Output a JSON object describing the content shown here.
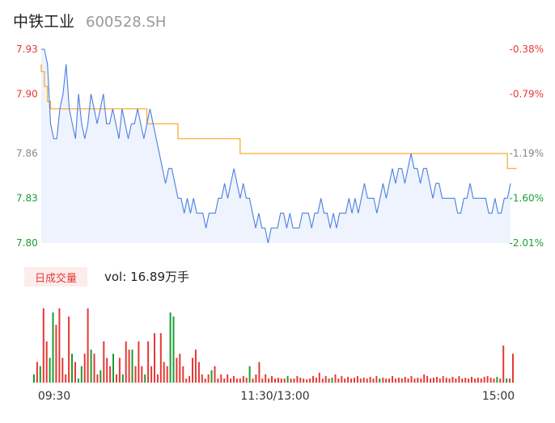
{
  "header": {
    "name": "中铁工业",
    "code": "600528.SH"
  },
  "volume_panel": {
    "tab_label": "日成交量",
    "vol_prefix": "vol:",
    "vol_value": "16.89万手"
  },
  "colors": {
    "price_line": "#4a7fe0",
    "avg_line": "#f5a623",
    "area_fill": "#eef3fd",
    "up": "#e53935",
    "down": "#1a9d33",
    "axis_text": "#888888"
  },
  "chart_data": [
    {
      "type": "line",
      "title": "",
      "y_range": [
        7.8,
        7.93
      ],
      "y_ticks_left": [
        "7.93",
        "7.90",
        "7.86",
        "7.83",
        "7.80"
      ],
      "y_ticks_right": [
        "-0.38%",
        "-0.79%",
        "-1.19%",
        "-1.60%",
        "-2.01%"
      ],
      "x_ticks": [
        "09:30",
        "11:30/13:00",
        "15:00"
      ],
      "grid": false,
      "series": [
        {
          "role": "price",
          "values": [
            7.93,
            7.93,
            7.92,
            7.88,
            7.87,
            7.87,
            7.89,
            7.9,
            7.92,
            7.89,
            7.88,
            7.87,
            7.9,
            7.88,
            7.87,
            7.88,
            7.9,
            7.89,
            7.88,
            7.89,
            7.9,
            7.88,
            7.88,
            7.89,
            7.88,
            7.87,
            7.89,
            7.88,
            7.87,
            7.88,
            7.88,
            7.89,
            7.88,
            7.87,
            7.88,
            7.89,
            7.88,
            7.87,
            7.86,
            7.85,
            7.84,
            7.85,
            7.85,
            7.84,
            7.83,
            7.83,
            7.82,
            7.83,
            7.82,
            7.83,
            7.82,
            7.82,
            7.82,
            7.81,
            7.82,
            7.82,
            7.82,
            7.83,
            7.83,
            7.84,
            7.83,
            7.84,
            7.85,
            7.84,
            7.83,
            7.84,
            7.83,
            7.83,
            7.82,
            7.81,
            7.82,
            7.81,
            7.81,
            7.8,
            7.81,
            7.81,
            7.81,
            7.82,
            7.82,
            7.81,
            7.82,
            7.81,
            7.81,
            7.81,
            7.82,
            7.82,
            7.82,
            7.81,
            7.82,
            7.82,
            7.83,
            7.82,
            7.82,
            7.81,
            7.82,
            7.81,
            7.82,
            7.82,
            7.82,
            7.83,
            7.82,
            7.83,
            7.82,
            7.83,
            7.84,
            7.83,
            7.83,
            7.83,
            7.82,
            7.83,
            7.84,
            7.83,
            7.84,
            7.85,
            7.84,
            7.85,
            7.85,
            7.84,
            7.85,
            7.86,
            7.85,
            7.85,
            7.84,
            7.85,
            7.85,
            7.84,
            7.83,
            7.84,
            7.84,
            7.83,
            7.83,
            7.83,
            7.83,
            7.83,
            7.82,
            7.82,
            7.83,
            7.83,
            7.84,
            7.83,
            7.83,
            7.83,
            7.83,
            7.83,
            7.82,
            7.82,
            7.83,
            7.82,
            7.82,
            7.83,
            7.83,
            7.84
          ]
        },
        {
          "role": "average",
          "values": [
            7.92,
            7.915,
            7.905,
            7.895,
            7.89,
            7.89,
            7.89,
            7.89,
            7.89,
            7.89,
            7.89,
            7.89,
            7.89,
            7.89,
            7.89,
            7.89,
            7.89,
            7.89,
            7.89,
            7.89,
            7.89,
            7.89,
            7.89,
            7.89,
            7.89,
            7.89,
            7.89,
            7.89,
            7.89,
            7.89,
            7.89,
            7.89,
            7.89,
            7.89,
            7.89,
            7.88,
            7.88,
            7.88,
            7.88,
            7.88,
            7.88,
            7.88,
            7.88,
            7.88,
            7.88,
            7.87,
            7.87,
            7.87,
            7.87,
            7.87,
            7.87,
            7.87,
            7.87,
            7.87,
            7.87,
            7.87,
            7.87,
            7.87,
            7.87,
            7.87,
            7.87,
            7.87,
            7.87,
            7.87,
            7.87,
            7.86,
            7.86,
            7.86,
            7.86,
            7.86,
            7.86,
            7.86,
            7.86,
            7.86,
            7.86,
            7.86,
            7.86,
            7.86,
            7.86,
            7.86,
            7.86,
            7.86,
            7.86,
            7.86,
            7.86,
            7.86,
            7.86,
            7.86,
            7.86,
            7.86,
            7.86,
            7.86,
            7.86,
            7.86,
            7.86,
            7.86,
            7.86,
            7.86,
            7.86,
            7.86,
            7.86,
            7.86,
            7.86,
            7.86,
            7.86,
            7.86,
            7.86,
            7.86,
            7.86,
            7.86,
            7.86,
            7.86,
            7.86,
            7.86,
            7.86,
            7.86,
            7.86,
            7.86,
            7.86,
            7.86,
            7.86,
            7.86,
            7.86,
            7.86,
            7.86,
            7.86,
            7.86,
            7.86,
            7.86,
            7.86,
            7.86,
            7.86,
            7.86,
            7.86,
            7.86,
            7.86,
            7.86,
            7.86,
            7.86,
            7.86,
            7.86,
            7.86,
            7.86,
            7.86,
            7.86,
            7.86,
            7.86,
            7.86,
            7.86,
            7.86,
            7.86,
            7.85,
            7.85,
            7.85
          ]
        }
      ]
    },
    {
      "type": "bar",
      "title": "",
      "y_unit": "relative",
      "series": [
        {
          "role": "volume",
          "values": [
            0.1,
            0.25,
            0.2,
            0.9,
            0.5,
            0.3,
            0.85,
            0.7,
            0.9,
            0.3,
            0.1,
            0.8,
            0.35,
            0.25,
            0.05,
            0.2,
            0.35,
            0.9,
            0.4,
            0.35,
            0.1,
            0.15,
            0.5,
            0.3,
            0.2,
            0.35,
            0.1,
            0.3,
            0.1,
            0.5,
            0.4,
            0.4,
            0.2,
            0.5,
            0.2,
            0.1,
            0.5,
            0.2,
            0.6,
            0.1,
            0.6,
            0.25,
            0.2,
            0.85,
            0.8,
            0.3,
            0.35,
            0.2,
            0.05,
            0.08,
            0.3,
            0.4,
            0.25,
            0.1,
            0.05,
            0.1,
            0.15,
            0.2,
            0.05,
            0.1,
            0.05,
            0.1,
            0.05,
            0.08,
            0.05,
            0.05,
            0.08,
            0.06,
            0.2,
            0.05,
            0.1,
            0.25,
            0.05,
            0.1,
            0.05,
            0.08,
            0.05,
            0.06,
            0.05,
            0.05,
            0.08,
            0.05,
            0.05,
            0.08,
            0.06,
            0.05,
            0.04,
            0.05,
            0.08,
            0.06,
            0.12,
            0.05,
            0.08,
            0.05,
            0.06,
            0.1,
            0.05,
            0.08,
            0.05,
            0.07,
            0.05,
            0.06,
            0.08,
            0.05,
            0.06,
            0.05,
            0.07,
            0.05,
            0.08,
            0.05,
            0.06,
            0.05,
            0.05,
            0.08,
            0.05,
            0.06,
            0.05,
            0.07,
            0.05,
            0.08,
            0.05,
            0.06,
            0.05,
            0.1,
            0.08,
            0.05,
            0.06,
            0.07,
            0.05,
            0.08,
            0.06,
            0.05,
            0.07,
            0.05,
            0.08,
            0.05,
            0.06,
            0.05,
            0.07,
            0.05,
            0.06,
            0.05,
            0.07,
            0.08,
            0.06,
            0.05,
            0.07,
            0.05,
            0.45,
            0.05,
            0.05,
            0.35
          ],
          "direction": [
            "d",
            "u",
            "d",
            "u",
            "u",
            "d",
            "d",
            "u",
            "u",
            "u",
            "u",
            "u",
            "d",
            "u",
            "d",
            "d",
            "u",
            "u",
            "d",
            "u",
            "u",
            "d",
            "u",
            "u",
            "u",
            "d",
            "u",
            "u",
            "d",
            "u",
            "u",
            "d",
            "u",
            "u",
            "u",
            "d",
            "u",
            "u",
            "u",
            "u",
            "u",
            "u",
            "u",
            "d",
            "d",
            "u",
            "u",
            "u",
            "u",
            "u",
            "u",
            "u",
            "u",
            "u",
            "u",
            "u",
            "d",
            "u",
            "u",
            "u",
            "u",
            "u",
            "u",
            "u",
            "u",
            "u",
            "u",
            "u",
            "d",
            "u",
            "u",
            "u",
            "u",
            "u",
            "u",
            "u",
            "u",
            "u",
            "u",
            "u",
            "d",
            "u",
            "u",
            "u",
            "u",
            "u",
            "u",
            "u",
            "u",
            "u",
            "u",
            "u",
            "u",
            "u",
            "d",
            "u",
            "u",
            "u",
            "u",
            "u",
            "u",
            "u",
            "u",
            "u",
            "u",
            "u",
            "u",
            "u",
            "u",
            "d",
            "u",
            "u",
            "u",
            "u",
            "u",
            "u",
            "u",
            "u",
            "u",
            "u",
            "u",
            "u",
            "u",
            "u",
            "u",
            "u",
            "u",
            "u",
            "u",
            "u",
            "u",
            "u",
            "u",
            "u",
            "u",
            "u",
            "u",
            "u",
            "u",
            "u",
            "u",
            "u",
            "u",
            "u",
            "u",
            "u",
            "d",
            "u",
            "u",
            "d"
          ]
        }
      ]
    }
  ]
}
